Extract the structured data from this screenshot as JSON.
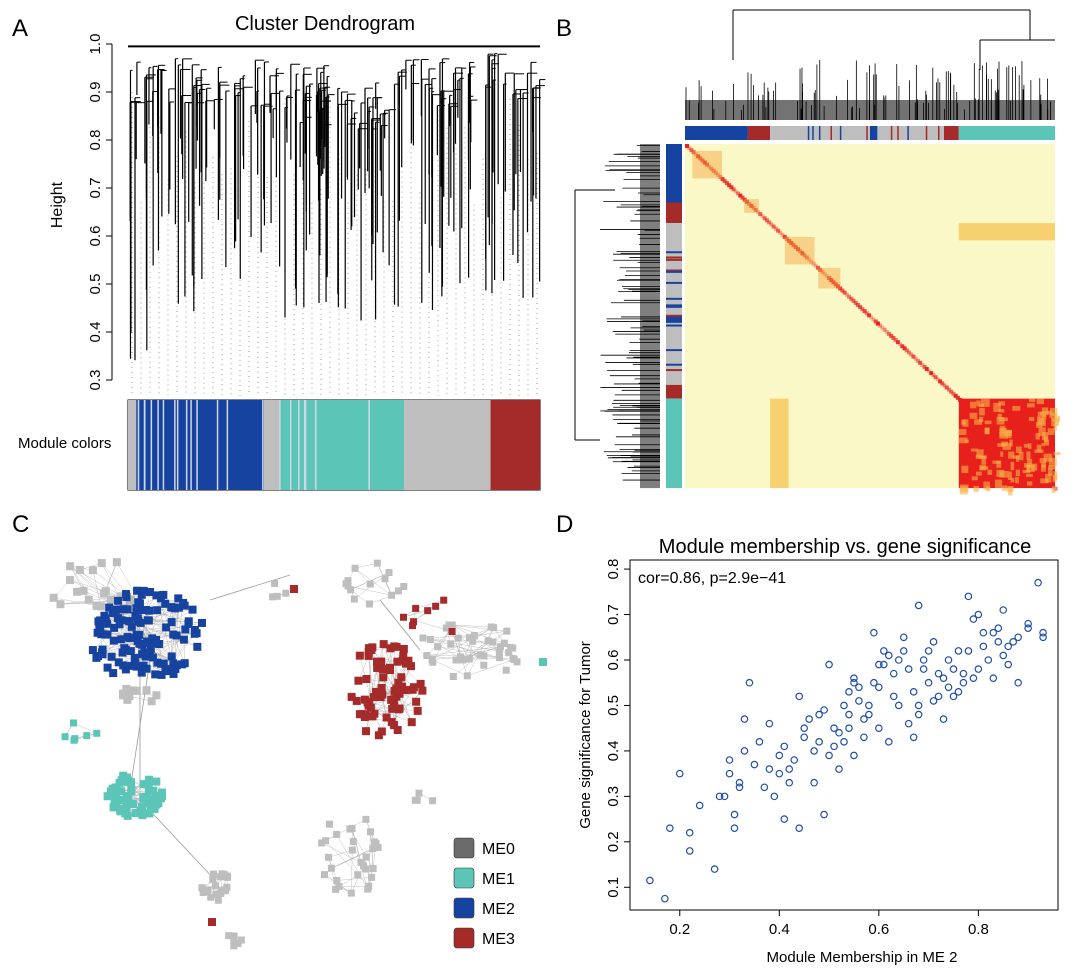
{
  "panels": {
    "a": {
      "letter": "A",
      "title": "Cluster Dendrogram",
      "ylabel": "Height",
      "yticks": [
        "0.3",
        "0.4",
        "0.5",
        "0.6",
        "0.7",
        "0.8",
        "0.9",
        "1.0"
      ],
      "color_bar_label": "Module colors"
    },
    "b": {
      "letter": "B"
    },
    "c": {
      "letter": "C"
    },
    "d": {
      "letter": "D"
    }
  },
  "colors": {
    "ME0": "#bebebe",
    "ME0_legend": "#6b6b6b",
    "ME1": "#5bc5b8",
    "ME2": "#1743a0",
    "ME3": "#a52a2a",
    "heat_low": "#fbf8c8",
    "heat_high": "#e8201c",
    "scatter_point": "#1f4fa8"
  },
  "module_bar": [
    {
      "module": "ME0",
      "fraction": 0.02
    },
    {
      "module": "ME2",
      "fraction": 0.31
    },
    {
      "module": "ME0",
      "fraction": 0.04
    },
    {
      "module": "ME1",
      "fraction": 0.3
    },
    {
      "module": "ME0",
      "fraction": 0.21
    },
    {
      "module": "ME3",
      "fraction": 0.12
    }
  ],
  "network_legend": [
    {
      "label": "ME0",
      "module": "ME0_legend"
    },
    {
      "label": "ME1",
      "module": "ME1"
    },
    {
      "label": "ME2",
      "module": "ME2"
    },
    {
      "label": "ME3",
      "module": "ME3"
    }
  ],
  "chart_data": [
    {
      "type": "dendrogram",
      "title": "Cluster Dendrogram",
      "xlabel": "",
      "ylabel": "Height",
      "ylim": [
        0.3,
        1.0
      ],
      "legend": "Module colors bar below tree"
    },
    {
      "type": "heatmap",
      "title": "",
      "description_axes": "gene-by-gene TOM heatmap with dendrograms and module color bars",
      "modules": [
        "ME2",
        "ME3",
        "ME0",
        "ME1"
      ]
    },
    {
      "type": "scatter",
      "title": "Module membership vs. gene significance",
      "annotation": "cor=0.86, p=2.9e−41",
      "xlabel": "Module Membership in ME 2",
      "ylabel": "Gene significance for Tumor",
      "xlim": [
        0.1,
        0.96
      ],
      "ylim": [
        0.05,
        0.82
      ],
      "xticks": [
        0.2,
        0.4,
        0.6,
        0.8
      ],
      "yticks": [
        0.1,
        0.2,
        0.3,
        0.4,
        0.5,
        0.6,
        0.7,
        0.8
      ],
      "grid": false,
      "points": [
        [
          0.14,
          0.115
        ],
        [
          0.17,
          0.075
        ],
        [
          0.18,
          0.23
        ],
        [
          0.2,
          0.35
        ],
        [
          0.22,
          0.22
        ],
        [
          0.22,
          0.18
        ],
        [
          0.24,
          0.28
        ],
        [
          0.27,
          0.14
        ],
        [
          0.28,
          0.3
        ],
        [
          0.29,
          0.3
        ],
        [
          0.3,
          0.38
        ],
        [
          0.3,
          0.35
        ],
        [
          0.31,
          0.23
        ],
        [
          0.31,
          0.26
        ],
        [
          0.32,
          0.33
        ],
        [
          0.32,
          0.32
        ],
        [
          0.33,
          0.4
        ],
        [
          0.33,
          0.47
        ],
        [
          0.34,
          0.55
        ],
        [
          0.35,
          0.37
        ],
        [
          0.36,
          0.42
        ],
        [
          0.37,
          0.32
        ],
        [
          0.38,
          0.46
        ],
        [
          0.38,
          0.36
        ],
        [
          0.39,
          0.3
        ],
        [
          0.4,
          0.35
        ],
        [
          0.4,
          0.39
        ],
        [
          0.41,
          0.25
        ],
        [
          0.41,
          0.41
        ],
        [
          0.42,
          0.33
        ],
        [
          0.42,
          0.36
        ],
        [
          0.43,
          0.38
        ],
        [
          0.44,
          0.23
        ],
        [
          0.44,
          0.52
        ],
        [
          0.45,
          0.45
        ],
        [
          0.45,
          0.43
        ],
        [
          0.46,
          0.47
        ],
        [
          0.47,
          0.33
        ],
        [
          0.47,
          0.4
        ],
        [
          0.48,
          0.42
        ],
        [
          0.48,
          0.48
        ],
        [
          0.49,
          0.26
        ],
        [
          0.49,
          0.49
        ],
        [
          0.5,
          0.39
        ],
        [
          0.5,
          0.59
        ],
        [
          0.51,
          0.41
        ],
        [
          0.51,
          0.45
        ],
        [
          0.52,
          0.36
        ],
        [
          0.52,
          0.44
        ],
        [
          0.53,
          0.42
        ],
        [
          0.53,
          0.5
        ],
        [
          0.54,
          0.45
        ],
        [
          0.54,
          0.48
        ],
        [
          0.54,
          0.53
        ],
        [
          0.55,
          0.55
        ],
        [
          0.55,
          0.39
        ],
        [
          0.55,
          0.56
        ],
        [
          0.56,
          0.54
        ],
        [
          0.56,
          0.51
        ],
        [
          0.57,
          0.47
        ],
        [
          0.57,
          0.43
        ],
        [
          0.58,
          0.48
        ],
        [
          0.58,
          0.5
        ],
        [
          0.59,
          0.66
        ],
        [
          0.59,
          0.55
        ],
        [
          0.6,
          0.59
        ],
        [
          0.6,
          0.54
        ],
        [
          0.6,
          0.45
        ],
        [
          0.61,
          0.62
        ],
        [
          0.61,
          0.59
        ],
        [
          0.62,
          0.42
        ],
        [
          0.62,
          0.61
        ],
        [
          0.63,
          0.52
        ],
        [
          0.63,
          0.57
        ],
        [
          0.64,
          0.5
        ],
        [
          0.64,
          0.6
        ],
        [
          0.65,
          0.65
        ],
        [
          0.65,
          0.62
        ],
        [
          0.66,
          0.46
        ],
        [
          0.66,
          0.58
        ],
        [
          0.67,
          0.53
        ],
        [
          0.67,
          0.43
        ],
        [
          0.68,
          0.48
        ],
        [
          0.68,
          0.5
        ],
        [
          0.68,
          0.72
        ],
        [
          0.69,
          0.58
        ],
        [
          0.69,
          0.6
        ],
        [
          0.7,
          0.55
        ],
        [
          0.7,
          0.62
        ],
        [
          0.71,
          0.51
        ],
        [
          0.71,
          0.64
        ],
        [
          0.72,
          0.57
        ],
        [
          0.72,
          0.52
        ],
        [
          0.73,
          0.47
        ],
        [
          0.73,
          0.56
        ],
        [
          0.74,
          0.6
        ],
        [
          0.74,
          0.54
        ],
        [
          0.75,
          0.52
        ],
        [
          0.75,
          0.58
        ],
        [
          0.76,
          0.53
        ],
        [
          0.76,
          0.62
        ],
        [
          0.77,
          0.57
        ],
        [
          0.77,
          0.55
        ],
        [
          0.78,
          0.74
        ],
        [
          0.78,
          0.62
        ],
        [
          0.79,
          0.69
        ],
        [
          0.79,
          0.56
        ],
        [
          0.8,
          0.58
        ],
        [
          0.8,
          0.7
        ],
        [
          0.81,
          0.66
        ],
        [
          0.81,
          0.63
        ],
        [
          0.82,
          0.6
        ],
        [
          0.83,
          0.56
        ],
        [
          0.83,
          0.66
        ],
        [
          0.84,
          0.64
        ],
        [
          0.84,
          0.67
        ],
        [
          0.85,
          0.61
        ],
        [
          0.85,
          0.71
        ],
        [
          0.86,
          0.59
        ],
        [
          0.86,
          0.63
        ],
        [
          0.87,
          0.64
        ],
        [
          0.88,
          0.65
        ],
        [
          0.88,
          0.55
        ],
        [
          0.9,
          0.68
        ],
        [
          0.9,
          0.67
        ],
        [
          0.92,
          0.77
        ],
        [
          0.93,
          0.66
        ],
        [
          0.93,
          0.65
        ]
      ]
    }
  ]
}
